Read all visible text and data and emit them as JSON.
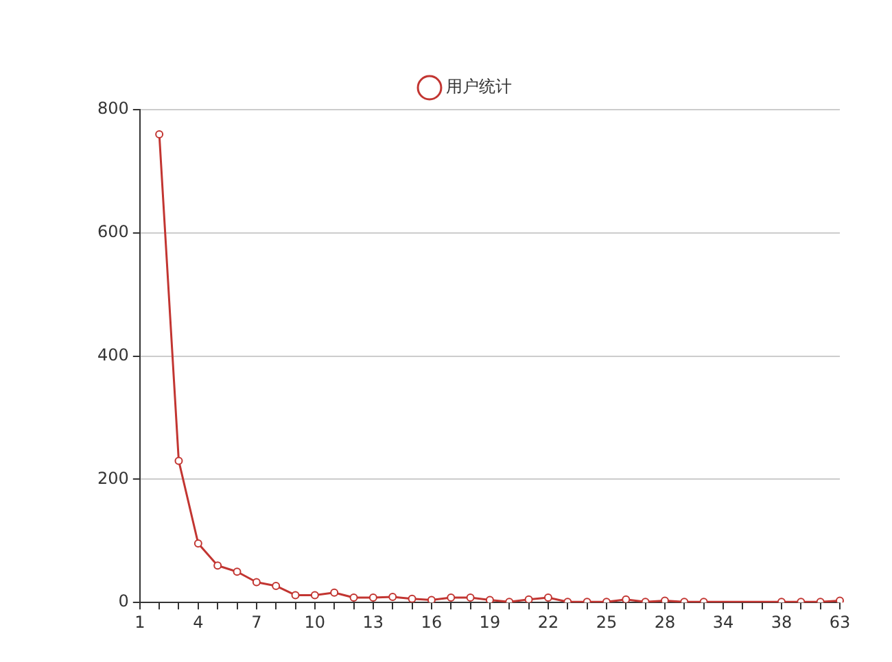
{
  "chart_data": {
    "type": "line",
    "categories": [
      "1",
      null,
      null,
      "4",
      null,
      null,
      "7",
      null,
      null,
      "10",
      null,
      null,
      "13",
      null,
      null,
      "16",
      null,
      null,
      "19",
      null,
      null,
      "22",
      null,
      null,
      "25",
      null,
      null,
      "28",
      null,
      null,
      "34",
      null,
      null,
      "38",
      null,
      null,
      "63"
    ],
    "series": [
      {
        "name": "用户统计",
        "color": "#c23531",
        "values": [
          null,
          760,
          230,
          96,
          60,
          50,
          33,
          27,
          12,
          12,
          16,
          8,
          8,
          9,
          6,
          4,
          8,
          8,
          4,
          1,
          5,
          8,
          1,
          1,
          1,
          5,
          1,
          3,
          1,
          1,
          null,
          null,
          null,
          1,
          1,
          1,
          3
        ]
      }
    ],
    "ylim": [
      0,
      800
    ],
    "yticks": [
      0,
      200,
      400,
      600,
      800
    ],
    "grid": "y",
    "legend": "top",
    "marker": "circle",
    "line_style": "solid"
  }
}
